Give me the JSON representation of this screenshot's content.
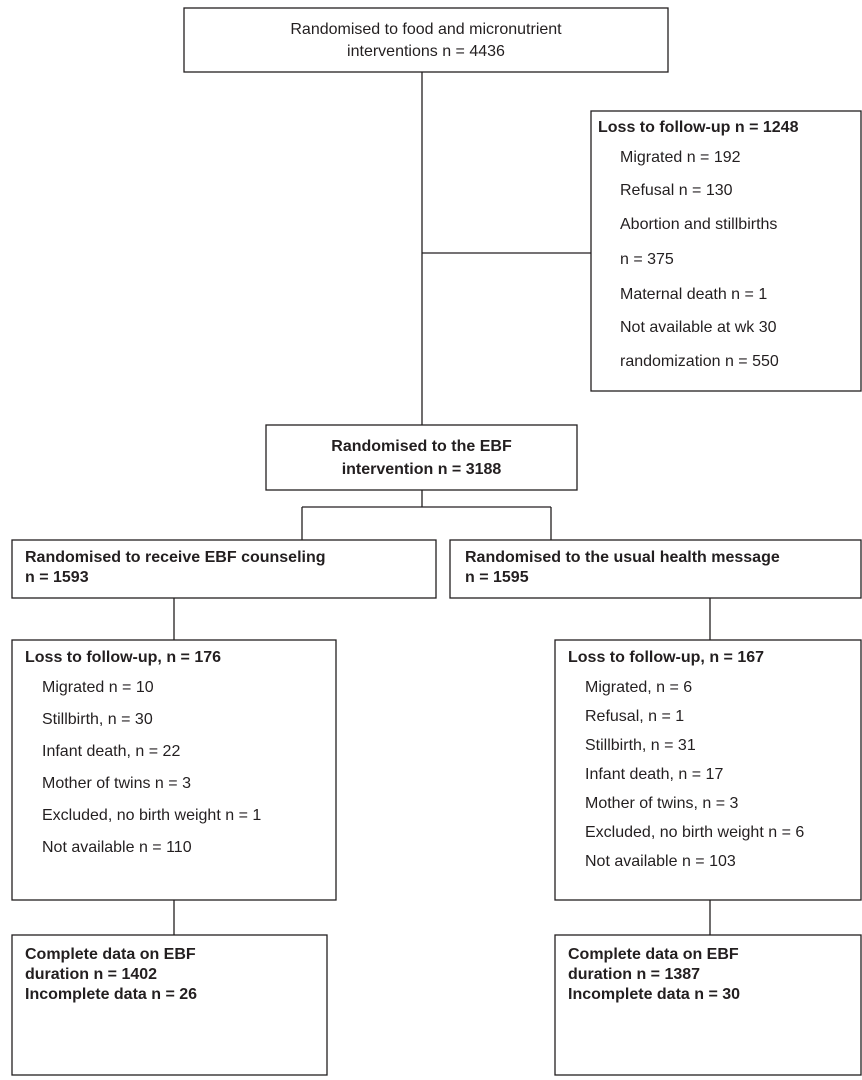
{
  "nodes": [
    {
      "lines": [
        "Randomised to food and micronutrient",
        "interventions n = 4436"
      ]
    },
    {
      "lines": [
        "Loss to follow-up n = 1248",
        "Migrated n = 192",
        "Refusal n = 130",
        "Abortion and stillbirths",
        "n = 375",
        "Maternal death n = 1",
        "Not available at wk 30",
        "randomization n = 550"
      ]
    },
    {
      "lines": [
        "Randomised to the EBF",
        "intervention n = 3188"
      ]
    },
    {
      "lines": [
        "Randomised to receive EBF counseling",
        "n = 1593"
      ]
    },
    {
      "lines": [
        "Randomised to the usual health message",
        "n = 1595"
      ]
    },
    {
      "lines": [
        "Loss to follow-up, n = 176",
        "Migrated n = 10",
        "Stillbirth, n = 30",
        "Infant death, n = 22",
        "Mother of twins n = 3",
        "Excluded, no birth weight n = 1",
        "Not available n = 110"
      ]
    },
    {
      "lines": [
        "Loss to follow-up, n = 167",
        "Migrated, n = 6",
        "Refusal, n = 1",
        "Stillbirth, n = 31",
        "Infant death, n = 17",
        "Mother of twins, n = 3",
        "Excluded, no birth weight  n = 6",
        "Not available n = 103"
      ]
    },
    {
      "lines": [
        "Complete data on EBF",
        "duration n = 1402",
        "Incomplete data n = 26"
      ]
    },
    {
      "lines": [
        "Complete data on EBF",
        "duration n = 1387",
        "Incomplete data n = 30"
      ]
    }
  ]
}
